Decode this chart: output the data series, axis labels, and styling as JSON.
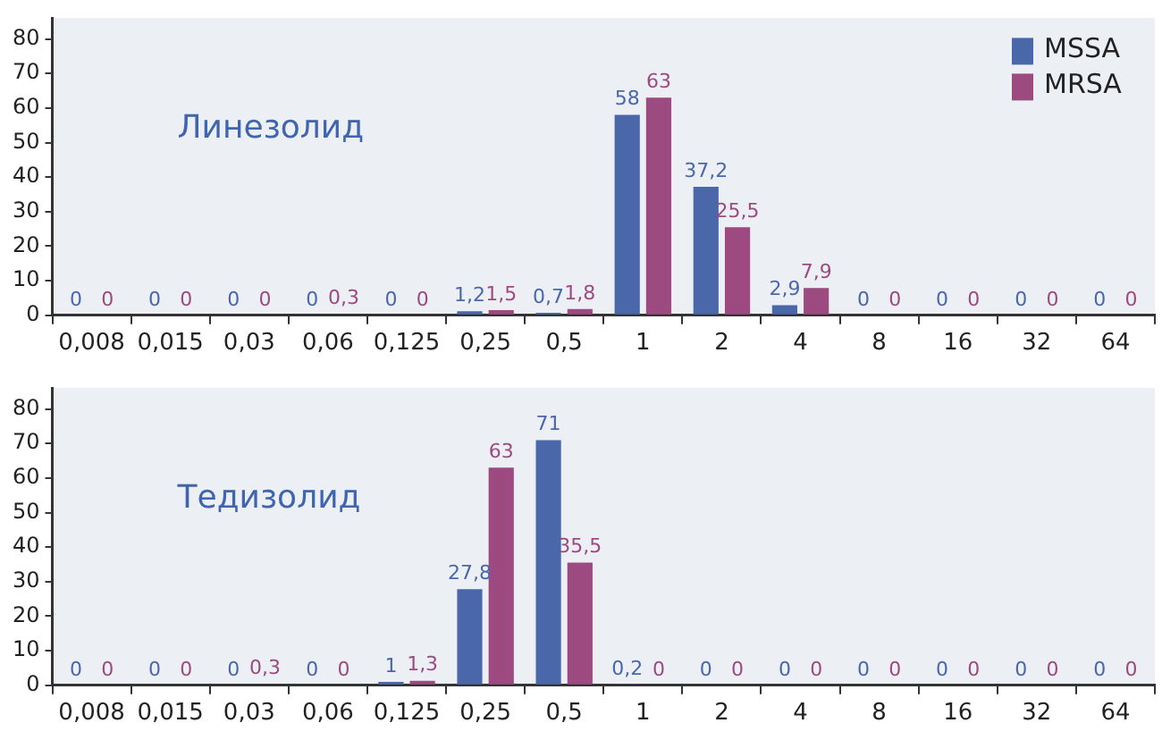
{
  "chart_data": [
    {
      "type": "bar",
      "title": "Линезолид",
      "categories": [
        "0,008",
        "0,015",
        "0,03",
        "0,06",
        "0,125",
        "0,25",
        "0,5",
        "1",
        "2",
        "4",
        "8",
        "16",
        "32",
        "64"
      ],
      "ylim": [
        0,
        86
      ],
      "yticks": [
        0,
        10,
        20,
        30,
        40,
        50,
        60,
        70,
        80
      ],
      "grid": false,
      "legend": "top right",
      "series": [
        {
          "name": "MSSA",
          "color": "#4a67aa",
          "values": [
            0,
            0,
            0,
            0,
            0,
            1.2,
            0.7,
            58,
            37.2,
            2.9,
            0,
            0,
            0,
            0
          ],
          "value_labels": [
            "0",
            "0",
            "0",
            "0",
            "0",
            "1,2",
            "0,7",
            "58",
            "37,2",
            "2,9",
            "0",
            "0",
            "0",
            "0"
          ]
        },
        {
          "name": "MRSA",
          "color": "#9c4a80",
          "values": [
            0,
            0,
            0,
            0.3,
            0,
            1.5,
            1.8,
            63,
            25.5,
            7.9,
            0,
            0,
            0,
            0
          ],
          "value_labels": [
            "0",
            "0",
            "0",
            "0,3",
            "0",
            "1,5",
            "1,8",
            "63",
            "25,5",
            "7,9",
            "0",
            "0",
            "0",
            "0"
          ]
        }
      ]
    },
    {
      "type": "bar",
      "title": "Тедизолид",
      "categories": [
        "0,008",
        "0,015",
        "0,03",
        "0,06",
        "0,125",
        "0,25",
        "0,5",
        "1",
        "2",
        "4",
        "8",
        "16",
        "32",
        "64"
      ],
      "ylim": [
        0,
        86
      ],
      "yticks": [
        0,
        10,
        20,
        30,
        40,
        50,
        60,
        70,
        80
      ],
      "grid": false,
      "legend": false,
      "series": [
        {
          "color": "#4a67aa",
          "values": [
            0,
            0,
            0,
            0,
            1,
            27.8,
            71,
            0.2,
            0,
            0,
            0,
            0,
            0,
            0
          ],
          "value_labels": [
            "0",
            "0",
            "0",
            "0",
            "1",
            "27,8",
            "71",
            "0,2",
            "0",
            "0",
            "0",
            "0",
            "0",
            "0"
          ]
        },
        {
          "color": "#9c4a80",
          "values": [
            0,
            0,
            0.3,
            0,
            1.3,
            63,
            35.5,
            0,
            0,
            0,
            0,
            0,
            0,
            0
          ],
          "value_labels": [
            "0",
            "0",
            "0,3",
            "0",
            "1,3",
            "63",
            "35,5",
            "0",
            "0",
            "0",
            "0",
            "0",
            "0",
            "0"
          ]
        }
      ]
    }
  ]
}
